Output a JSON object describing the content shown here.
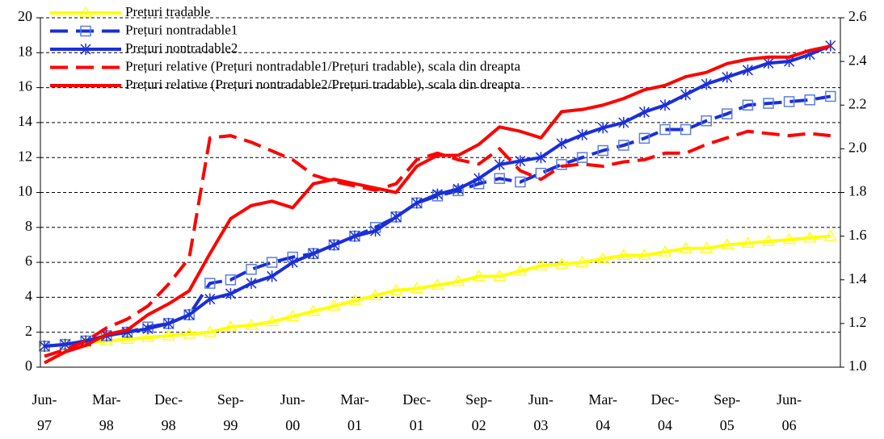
{
  "chart_data": {
    "type": "line",
    "categories": [
      "Jun-97",
      null,
      null,
      "Mar-98",
      null,
      null,
      "Dec-98",
      null,
      null,
      "Sep-99",
      null,
      null,
      "Jun-00",
      null,
      null,
      "Mar-01",
      null,
      null,
      "Dec-01",
      null,
      null,
      "Sep-02",
      null,
      null,
      "Jun-03",
      null,
      null,
      "Mar-04",
      null,
      null,
      "Dec-04",
      null,
      null,
      "Sep-05",
      null,
      null,
      "Jun-06",
      null,
      null
    ],
    "ylim": [
      0,
      20
    ],
    "yticks": [
      0,
      2,
      4,
      6,
      8,
      10,
      12,
      14,
      16,
      18,
      20
    ],
    "y2lim": [
      1,
      2.6
    ],
    "y2ticks": [
      {
        "value": 1,
        "label": "1.0"
      },
      1.2,
      1.4,
      1.6,
      1.8,
      {
        "value": 2,
        "label": "2.0"
      },
      2.2,
      2.4,
      2.6
    ],
    "grid": true,
    "legend": "top-left",
    "series": [
      {
        "name": "Prețuri tradable",
        "color": "#ffff00",
        "marker": "triangle",
        "dash": "solid",
        "values": [
          1.2,
          1.3,
          1.4,
          1.5,
          1.6,
          1.7,
          1.8,
          1.9,
          2.0,
          2.3,
          2.4,
          2.6,
          2.9,
          3.2,
          3.5,
          3.8,
          4.1,
          4.4,
          4.5,
          4.7,
          4.9,
          5.2,
          5.2,
          5.5,
          5.8,
          5.9,
          6.0,
          6.2,
          6.4,
          6.4,
          6.6,
          6.8,
          6.8,
          7.0,
          7.1,
          7.2,
          7.3,
          7.4,
          7.5
        ]
      },
      {
        "name": "Prețuri nontradable1",
        "color": "#1a2fd8",
        "marker": "square",
        "dash": "dashed",
        "values": [
          1.2,
          1.3,
          1.5,
          1.8,
          2.0,
          2.3,
          2.5,
          3.0,
          4.8,
          5.0,
          5.6,
          6.0,
          6.3,
          6.5,
          7.0,
          7.5,
          8.0,
          8.6,
          9.4,
          9.8,
          10.1,
          10.5,
          10.8,
          10.6,
          11.1,
          11.6,
          12.0,
          12.4,
          12.7,
          13.1,
          13.6,
          13.6,
          14.1,
          14.5,
          15.0,
          15.1,
          15.2,
          15.3,
          15.5
        ]
      },
      {
        "name": "Prețuri nontradable2",
        "color": "#1a2fd8",
        "marker": "asterisk",
        "dash": "solid",
        "values": [
          1.2,
          1.3,
          1.5,
          1.8,
          2.0,
          2.2,
          2.5,
          3.0,
          3.9,
          4.2,
          4.8,
          5.2,
          6.0,
          6.5,
          7.0,
          7.5,
          7.8,
          8.6,
          9.4,
          9.9,
          10.2,
          10.8,
          11.6,
          11.8,
          12.0,
          12.8,
          13.3,
          13.7,
          14.0,
          14.6,
          15.0,
          15.6,
          16.2,
          16.6,
          17.0,
          17.4,
          17.5,
          17.9,
          18.4
        ]
      },
      {
        "name": "Prețuri relative (Prețuri nontradable1/Prețuri tradable), scala din dreapta",
        "color": "#ff0000",
        "marker": "none",
        "dash": "dashed",
        "axis": "y2",
        "values": [
          1.05,
          1.08,
          1.12,
          1.18,
          1.22,
          1.28,
          1.38,
          1.5,
          2.05,
          2.06,
          2.03,
          1.99,
          1.95,
          1.88,
          1.85,
          1.83,
          1.81,
          1.84,
          1.95,
          1.98,
          1.95,
          1.93,
          2.0,
          1.9,
          1.86,
          1.92,
          1.93,
          1.92,
          1.94,
          1.95,
          1.98,
          1.98,
          2.02,
          2.05,
          2.08,
          2.07,
          2.06,
          2.07,
          2.06
        ]
      },
      {
        "name": "Prețuri relative (Prețuri nontradable2/Prețuri tradable), scala din dreapta",
        "color": "#ff0000",
        "marker": "none",
        "dash": "solid",
        "axis": "y2",
        "values": [
          1.02,
          1.07,
          1.1,
          1.15,
          1.17,
          1.24,
          1.29,
          1.35,
          1.52,
          1.68,
          1.74,
          1.76,
          1.73,
          1.84,
          1.86,
          1.84,
          1.82,
          1.8,
          1.92,
          1.97,
          1.97,
          2.02,
          2.1,
          2.08,
          2.05,
          2.17,
          2.18,
          2.2,
          2.23,
          2.27,
          2.29,
          2.33,
          2.35,
          2.39,
          2.41,
          2.42,
          2.42,
          2.45,
          2.47
        ]
      }
    ]
  }
}
